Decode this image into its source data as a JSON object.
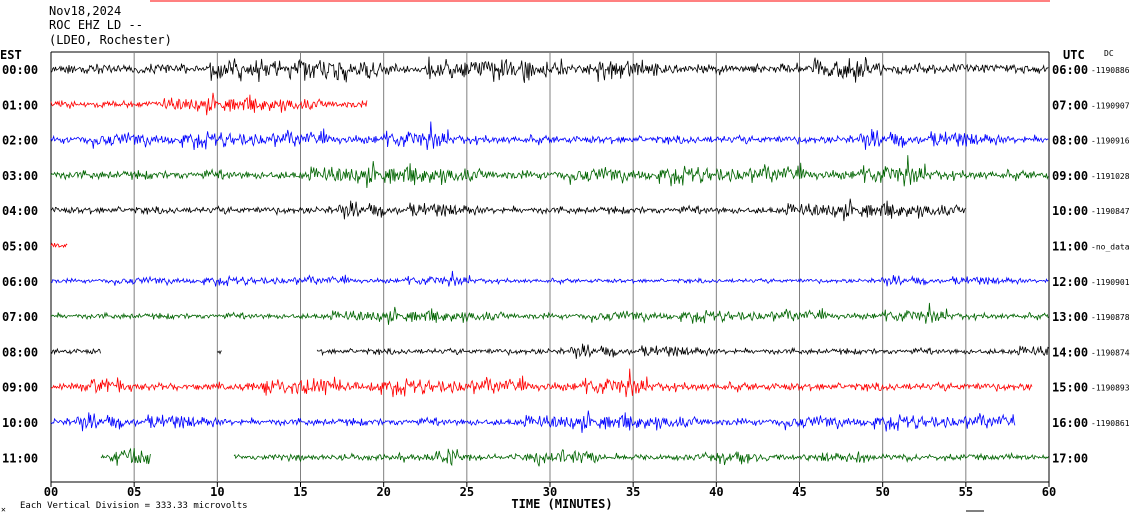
{
  "header": {
    "date": "Nov18,2024",
    "station": "ROC EHZ LD --",
    "network": "(LDEO, Rochester)",
    "left_zone": "EST",
    "right_zone": "UTC",
    "dc_label": "DC"
  },
  "footer": {
    "scale_note": "Each Vertical Division = 333.33 microvolts",
    "corner_mark": "✕"
  },
  "colors": {
    "black": "#000000",
    "red": "#ff0000",
    "blue": "#0000ff",
    "green": "#006400",
    "top_rule": "#ff0000",
    "grid": "#808080"
  },
  "chart_data": {
    "type": "line",
    "title": "",
    "xlabel": "TIME (MINUTES)",
    "ylabel": "",
    "xlim": [
      0,
      60
    ],
    "x_ticks": [
      "00",
      "05",
      "10",
      "15",
      "20",
      "25",
      "30",
      "35",
      "40",
      "45",
      "50",
      "55",
      "60"
    ],
    "vertical_grid": true,
    "rows": [
      {
        "est": "00:00",
        "utc": "06:00",
        "dc": "-1190886",
        "color": "black",
        "segments": [
          [
            0,
            60
          ]
        ],
        "amp": 13
      },
      {
        "est": "01:00",
        "utc": "07:00",
        "dc": "-1190907",
        "color": "red",
        "segments": [
          [
            0,
            19
          ]
        ],
        "amp": 10
      },
      {
        "est": "02:00",
        "utc": "08:00",
        "dc": "-1190916",
        "color": "blue",
        "segments": [
          [
            0,
            60
          ]
        ],
        "amp": 11
      },
      {
        "est": "03:00",
        "utc": "09:00",
        "dc": "-1191028",
        "color": "green",
        "segments": [
          [
            0,
            60
          ]
        ],
        "amp": 12
      },
      {
        "est": "04:00",
        "utc": "10:00",
        "dc": "-1190847",
        "color": "black",
        "segments": [
          [
            0,
            55
          ]
        ],
        "amp": 10
      },
      {
        "est": "05:00",
        "utc": "11:00",
        "dc": "-no_data",
        "color": "red",
        "segments": [
          [
            0,
            1
          ]
        ],
        "amp": 9
      },
      {
        "est": "06:00",
        "utc": "12:00",
        "dc": "-1190901",
        "color": "blue",
        "segments": [
          [
            0,
            60
          ]
        ],
        "amp": 6
      },
      {
        "est": "07:00",
        "utc": "13:00",
        "dc": "-1190878",
        "color": "green",
        "segments": [
          [
            0,
            60
          ]
        ],
        "amp": 8
      },
      {
        "est": "08:00",
        "utc": "14:00",
        "dc": "-1190874",
        "color": "black",
        "segments": [
          [
            0,
            3
          ],
          [
            10,
            10.3
          ],
          [
            16,
            60
          ]
        ],
        "amp": 8
      },
      {
        "est": "09:00",
        "utc": "15:00",
        "dc": "-1190893",
        "color": "red",
        "segments": [
          [
            0,
            59
          ]
        ],
        "amp": 11
      },
      {
        "est": "10:00",
        "utc": "16:00",
        "dc": "-1190861",
        "color": "blue",
        "segments": [
          [
            0,
            58
          ]
        ],
        "amp": 10
      },
      {
        "est": "11:00",
        "utc": "17:00",
        "dc": "",
        "color": "green",
        "segments": [
          [
            3,
            6
          ],
          [
            11,
            60
          ]
        ],
        "amp": 9
      }
    ]
  }
}
